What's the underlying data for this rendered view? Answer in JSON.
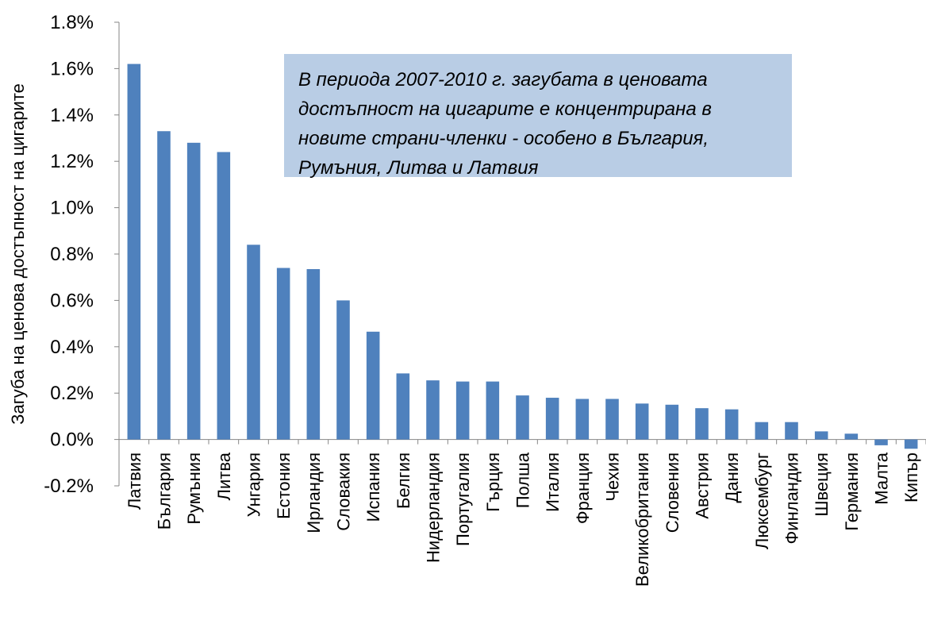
{
  "chart_data": {
    "type": "bar",
    "title": "",
    "xlabel": "",
    "ylabel": "Загуба на ценова достъпност на цигарите",
    "ylim": [
      -0.2,
      1.8
    ],
    "yticks": [
      "-0.2%",
      "0.0%",
      "0.2%",
      "0.4%",
      "0.6%",
      "0.8%",
      "1.0%",
      "1.2%",
      "1.4%",
      "1.6%",
      "1.8%"
    ],
    "unit": "%",
    "grid": false,
    "legend": "none",
    "categories": [
      "Латвия",
      "България",
      "Румъния",
      "Литва",
      "Унгария",
      "Естония",
      "Ирландия",
      "Словакия",
      "Испания",
      "Белгия",
      "Нидерландия",
      "Португалия",
      "Гърция",
      "Полша",
      "Италия",
      "Франция",
      "Чехия",
      "Великобритания",
      "Словения",
      "Австрия",
      "Дания",
      "Люксембург",
      "Финландия",
      "Швеция",
      "Германия",
      "Малта",
      "Кипър"
    ],
    "values": [
      1.62,
      1.33,
      1.28,
      1.24,
      0.84,
      0.74,
      0.735,
      0.6,
      0.465,
      0.285,
      0.255,
      0.25,
      0.25,
      0.19,
      0.18,
      0.175,
      0.175,
      0.155,
      0.15,
      0.135,
      0.13,
      0.075,
      0.075,
      0.035,
      0.025,
      -0.025,
      -0.04
    ],
    "annotation": "В периода 2007-2010 г. загубата в ценовата достъпност на цигарите е концентрирана в новите страни-членки - особено в България, Румъния, Литва и Латвия",
    "colors": {
      "bar": "#4f81bd",
      "annotation_background": "#b9cde5",
      "axis": "#868686"
    }
  }
}
